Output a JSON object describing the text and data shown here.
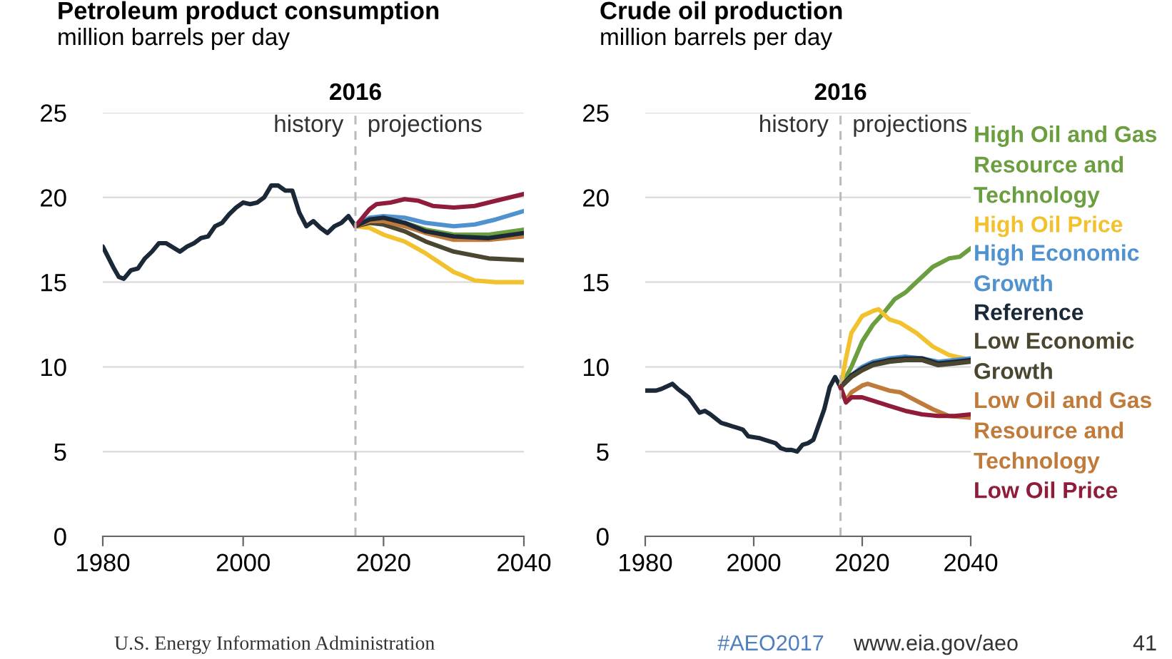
{
  "chart_data": [
    {
      "type": "line",
      "title": "Petroleum product consumption",
      "subtitle": "million barrels per day",
      "xlim": [
        1980,
        2040
      ],
      "xticks": [
        1980,
        2000,
        2020,
        2040
      ],
      "ylim": [
        0,
        25
      ],
      "yticks": [
        0,
        5,
        10,
        15,
        20,
        25
      ],
      "grid": "y",
      "ref_lines": [
        {
          "axis": "x",
          "value": 2016,
          "label": "2016",
          "color": "#bbbbbb",
          "line_style": "dashed"
        }
      ],
      "annotations": [
        "history",
        "projections",
        "U.S. Energy Information Administration",
        "#AEO2017",
        "www.eia.gov/aeo",
        "41"
      ],
      "series": [
        {
          "color": "#1b2838",
          "x": [
            1980,
            1981.6,
            1982.3,
            1983,
            1984,
            1985,
            1986,
            1987,
            1988,
            1989,
            1991,
            1992,
            1993,
            1994,
            1995,
            1996,
            1997,
            1998,
            1999,
            2000,
            2001,
            2002,
            2003,
            2004,
            2005,
            2006,
            2007,
            2008,
            2009,
            2010,
            2011,
            2012,
            2013,
            2014,
            2015,
            2016
          ],
          "values": [
            17.1,
            15.8,
            15.3,
            15.2,
            15.7,
            15.8,
            16.4,
            16.8,
            17.3,
            17.3,
            16.8,
            17.1,
            17.3,
            17.6,
            17.7,
            18.3,
            18.5,
            19.0,
            19.4,
            19.7,
            19.6,
            19.7,
            20.0,
            20.7,
            20.7,
            20.4,
            20.4,
            19.1,
            18.3,
            18.6,
            18.2,
            17.9,
            18.3,
            18.5,
            18.9,
            18.3
          ]
        },
        {
          "color": "#6a9e3f",
          "x": [
            2016,
            2018,
            2020,
            2023,
            2026,
            2030,
            2035,
            2040
          ],
          "values": [
            18.3,
            18.6,
            18.7,
            18.5,
            18.1,
            17.8,
            17.8,
            18.1
          ]
        },
        {
          "color": "#f2c12e",
          "x": [
            2016,
            2018,
            2020,
            2023,
            2026,
            2030,
            2033,
            2036,
            2040
          ],
          "values": [
            18.3,
            18.2,
            17.8,
            17.4,
            16.7,
            15.6,
            15.1,
            15.0,
            15.0
          ]
        },
        {
          "color": "#4f92cf",
          "x": [
            2016,
            2018,
            2020,
            2023,
            2026,
            2030,
            2033,
            2036,
            2040
          ],
          "values": [
            18.3,
            18.8,
            18.9,
            18.8,
            18.5,
            18.3,
            18.4,
            18.7,
            19.2
          ]
        },
        {
          "color": "#4b4630",
          "x": [
            2016,
            2018,
            2020,
            2023,
            2026,
            2030,
            2035,
            2040
          ],
          "values": [
            18.3,
            18.5,
            18.4,
            18.0,
            17.4,
            16.8,
            16.4,
            16.3
          ]
        },
        {
          "color": "#c07a3a",
          "x": [
            2016,
            2018,
            2020,
            2023,
            2026,
            2030,
            2035,
            2040
          ],
          "values": [
            18.3,
            18.6,
            18.6,
            18.3,
            17.9,
            17.5,
            17.5,
            17.7
          ]
        },
        {
          "color": "#1b2838",
          "x": [
            2016,
            2018,
            2020,
            2023,
            2026,
            2030,
            2035,
            2040
          ],
          "values": [
            18.3,
            18.7,
            18.8,
            18.5,
            18.0,
            17.7,
            17.6,
            17.9
          ]
        },
        {
          "color": "#8f1d3a",
          "x": [
            2016,
            2018,
            2019,
            2021,
            2023,
            2025,
            2027,
            2030,
            2033,
            2036,
            2040
          ],
          "values": [
            18.3,
            19.3,
            19.6,
            19.7,
            19.9,
            19.8,
            19.5,
            19.4,
            19.5,
            19.8,
            20.2
          ]
        }
      ]
    },
    {
      "type": "line",
      "title": "Crude oil production",
      "subtitle": "million barrels per day",
      "xlim": [
        1980,
        2040
      ],
      "xticks": [
        1980,
        2000,
        2020,
        2040
      ],
      "ylim": [
        0,
        25
      ],
      "yticks": [
        0,
        5,
        10,
        15,
        20,
        25
      ],
      "grid": "y",
      "ref_lines": [
        {
          "axis": "x",
          "value": 2016,
          "label": "2016",
          "color": "#bbbbbb",
          "line_style": "dashed"
        }
      ],
      "annotations": [
        "history",
        "projections"
      ],
      "series": [
        {
          "color": "#1b2838",
          "x": [
            1980,
            1982,
            1983,
            1985,
            1986,
            1988,
            1990,
            1991,
            1992,
            1994,
            1996,
            1997,
            1998,
            1999,
            2001,
            2002,
            2004,
            2005,
            2006,
            2007,
            2008,
            2009,
            2010,
            2011,
            2012,
            2013,
            2014,
            2015,
            2016
          ],
          "values": [
            8.6,
            8.6,
            8.7,
            9.0,
            8.7,
            8.2,
            7.3,
            7.4,
            7.2,
            6.7,
            6.5,
            6.4,
            6.3,
            5.9,
            5.8,
            5.7,
            5.5,
            5.2,
            5.1,
            5.1,
            5.0,
            5.4,
            5.5,
            5.7,
            6.6,
            7.5,
            8.8,
            9.4,
            8.8
          ]
        },
        {
          "name": "High Oil and Gas Resource and Technology",
          "color": "#6a9e3f",
          "x": [
            2016,
            2018,
            2020,
            2022,
            2024,
            2026,
            2028,
            2030,
            2033,
            2036,
            2038,
            2040
          ],
          "values": [
            8.8,
            10.0,
            11.5,
            12.5,
            13.2,
            14.0,
            14.4,
            15.0,
            15.9,
            16.4,
            16.5,
            17.0
          ]
        },
        {
          "name": "High Oil Price",
          "color": "#f2c12e",
          "x": [
            2016,
            2017,
            2018,
            2020,
            2022,
            2023,
            2025,
            2027,
            2030,
            2033,
            2036,
            2040
          ],
          "values": [
            8.8,
            10.5,
            12.0,
            13.0,
            13.3,
            13.4,
            12.8,
            12.6,
            12.0,
            11.2,
            10.7,
            10.4
          ]
        },
        {
          "name": "High Economic Growth",
          "color": "#4f92cf",
          "x": [
            2016,
            2018,
            2020,
            2022,
            2025,
            2028,
            2031,
            2034,
            2037,
            2040
          ],
          "values": [
            8.8,
            9.5,
            10.0,
            10.3,
            10.5,
            10.6,
            10.5,
            10.3,
            10.4,
            10.5
          ]
        },
        {
          "name": "Reference",
          "color": "#1b2838",
          "x": [
            2016,
            2018,
            2020,
            2022,
            2025,
            2028,
            2031,
            2034,
            2037,
            2040
          ],
          "values": [
            8.8,
            9.5,
            9.9,
            10.2,
            10.4,
            10.5,
            10.5,
            10.2,
            10.3,
            10.4
          ]
        },
        {
          "name": "Low Economic Growth",
          "color": "#4b4630",
          "x": [
            2016,
            2018,
            2020,
            2022,
            2025,
            2028,
            2031,
            2034,
            2037,
            2040
          ],
          "values": [
            8.8,
            9.4,
            9.8,
            10.1,
            10.3,
            10.4,
            10.4,
            10.1,
            10.2,
            10.3
          ]
        },
        {
          "name": "Low Oil and Gas Resource and Technology",
          "color": "#c07a3a",
          "x": [
            2016,
            2017,
            2018,
            2020,
            2021,
            2023,
            2025,
            2027,
            2030,
            2033,
            2036,
            2040
          ],
          "values": [
            8.8,
            8.0,
            8.5,
            8.9,
            9.0,
            8.8,
            8.6,
            8.5,
            8.0,
            7.5,
            7.1,
            7.0
          ]
        },
        {
          "name": "Low Oil Price",
          "color": "#8f1d3a",
          "x": [
            2016,
            2017,
            2018,
            2020,
            2022,
            2025,
            2028,
            2031,
            2034,
            2037,
            2040
          ],
          "values": [
            8.8,
            7.9,
            8.2,
            8.2,
            8.0,
            7.7,
            7.4,
            7.2,
            7.1,
            7.1,
            7.2
          ]
        }
      ]
    }
  ]
}
